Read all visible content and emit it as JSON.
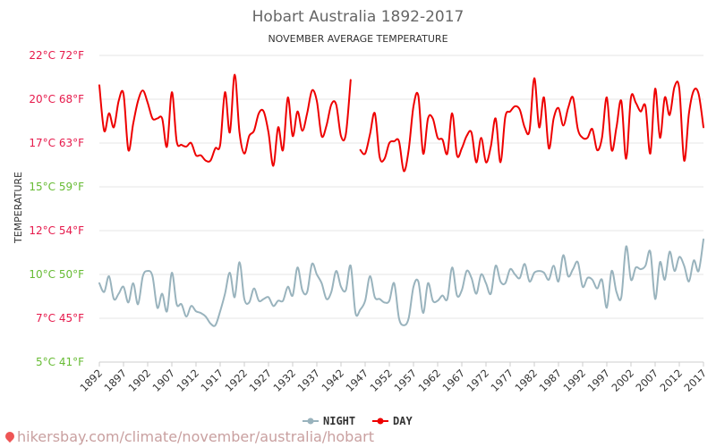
{
  "title": "Hobart Australia 1892-2017",
  "subtitle": "NOVEMBER AVERAGE TEMPERATURE",
  "ylabel": "TEMPERATURE",
  "url": "hikersbay.com/climate/november/australia/hobart",
  "colors": {
    "day": "#ee0000",
    "night": "#99b3bd",
    "grid": "#e6e6e6",
    "tick_warm": "#e6194b",
    "tick_cool": "#66bb33"
  },
  "chart_data": {
    "type": "line",
    "x": [
      1892,
      1893,
      1894,
      1895,
      1896,
      1897,
      1898,
      1899,
      1900,
      1901,
      1902,
      1903,
      1904,
      1905,
      1906,
      1907,
      1908,
      1909,
      1910,
      1911,
      1912,
      1913,
      1914,
      1915,
      1916,
      1917,
      1918,
      1919,
      1920,
      1921,
      1922,
      1923,
      1924,
      1925,
      1926,
      1927,
      1928,
      1929,
      1930,
      1931,
      1932,
      1933,
      1934,
      1935,
      1936,
      1937,
      1938,
      1939,
      1940,
      1941,
      1942,
      1943,
      1944,
      1945,
      1946,
      1947,
      1948,
      1949,
      1950,
      1951,
      1952,
      1953,
      1954,
      1955,
      1956,
      1957,
      1958,
      1959,
      1960,
      1961,
      1962,
      1963,
      1964,
      1965,
      1966,
      1967,
      1968,
      1969,
      1970,
      1971,
      1972,
      1973,
      1974,
      1975,
      1976,
      1977,
      1978,
      1979,
      1980,
      1981,
      1982,
      1983,
      1984,
      1985,
      1986,
      1987,
      1988,
      1989,
      1990,
      1991,
      1992,
      1993,
      1994,
      1995,
      1996,
      1997,
      1998,
      1999,
      2000,
      2001,
      2002,
      2003,
      2004,
      2005,
      2006,
      2007,
      2008,
      2009,
      2010,
      2011,
      2012,
      2013,
      2014,
      2015,
      2016,
      2017
    ],
    "series": [
      {
        "name": "DAY",
        "values": [
          20.8,
          18.2,
          19.2,
          18.4,
          19.9,
          20.3,
          17.1,
          18.6,
          19.9,
          20.5,
          19.8,
          18.9,
          18.9,
          18.9,
          17.3,
          20.4,
          17.6,
          17.4,
          17.3,
          17.5,
          16.8,
          16.8,
          16.5,
          16.5,
          17.2,
          17.4,
          20.4,
          18.1,
          21.4,
          18.1,
          16.9,
          17.9,
          18.2,
          19.2,
          19.3,
          18.1,
          16.2,
          18.4,
          17.1,
          20.1,
          17.9,
          19.3,
          18.2,
          19.2,
          20.5,
          19.9,
          17.9,
          18.5,
          19.7,
          19.7,
          17.9,
          18.0,
          21.1,
          null,
          17.1,
          16.9,
          18.0,
          19.2,
          16.7,
          16.6,
          17.5,
          17.6,
          17.6,
          15.9,
          17.1,
          19.6,
          20.2,
          16.9,
          18.9,
          18.9,
          17.8,
          17.7,
          16.9,
          19.2,
          16.8,
          17.2,
          17.9,
          18.1,
          16.4,
          17.8,
          16.4,
          17.3,
          18.9,
          16.4,
          19.0,
          19.3,
          19.6,
          19.4,
          18.4,
          18.2,
          21.2,
          18.4,
          20.1,
          17.2,
          18.9,
          19.5,
          18.5,
          19.5,
          20.1,
          18.3,
          17.8,
          17.8,
          18.3,
          17.1,
          17.8,
          20.1,
          17.1,
          18.4,
          19.9,
          16.6,
          20.1,
          19.8,
          19.3,
          19.6,
          16.9,
          20.6,
          17.8,
          20.1,
          19.1,
          20.7,
          20.6,
          16.5,
          19.2,
          20.5,
          20.3,
          18.4
        ]
      },
      {
        "name": "NIGHT",
        "values": [
          9.5,
          9.0,
          9.9,
          8.6,
          8.9,
          9.3,
          8.4,
          9.5,
          8.3,
          9.9,
          10.2,
          9.9,
          8.1,
          8.9,
          7.9,
          10.1,
          8.3,
          8.3,
          7.6,
          8.2,
          7.9,
          7.8,
          7.6,
          7.2,
          7.1,
          7.9,
          8.9,
          10.1,
          8.7,
          10.7,
          8.6,
          8.4,
          9.2,
          8.5,
          8.6,
          8.7,
          8.2,
          8.5,
          8.5,
          9.3,
          8.8,
          10.4,
          9.1,
          9.0,
          10.6,
          10.0,
          9.5,
          8.6,
          9.0,
          10.2,
          9.3,
          9.1,
          10.5,
          7.8,
          8.0,
          8.5,
          9.9,
          8.7,
          8.6,
          8.4,
          8.5,
          9.5,
          7.5,
          7.1,
          7.5,
          9.3,
          9.6,
          7.8,
          9.5,
          8.5,
          8.5,
          8.8,
          8.6,
          10.4,
          8.8,
          9.1,
          10.2,
          9.8,
          8.9,
          10.0,
          9.5,
          8.9,
          10.5,
          9.6,
          9.5,
          10.3,
          10.0,
          9.8,
          10.6,
          9.6,
          10.1,
          10.2,
          10.1,
          9.7,
          10.5,
          9.6,
          11.1,
          9.9,
          10.3,
          10.7,
          9.3,
          9.8,
          9.7,
          9.2,
          9.7,
          8.1,
          10.2,
          9.0,
          8.7,
          11.6,
          9.7,
          10.4,
          10.3,
          10.5,
          11.3,
          8.6,
          10.7,
          9.7,
          11.3,
          10.2,
          11.0,
          10.5,
          9.6,
          10.8,
          10.2,
          12.0
        ]
      }
    ],
    "xticks": [
      "1892",
      "1897",
      "1902",
      "1907",
      "1912",
      "1917",
      "1922",
      "1927",
      "1932",
      "1937",
      "1942",
      "1947",
      "1952",
      "1957",
      "1962",
      "1967",
      "1972",
      "1977",
      "1982",
      "1987",
      "1992",
      "1997",
      "2002",
      "2007",
      "2012",
      "2017"
    ],
    "yticks": [
      {
        "value": 5,
        "label": "5°C 41°F",
        "tone": "cool"
      },
      {
        "value": 7.5,
        "label": "7°C 45°F",
        "tone": "warm"
      },
      {
        "value": 10,
        "label": "10°C 50°F",
        "tone": "cool"
      },
      {
        "value": 12.5,
        "label": "12°C 54°F",
        "tone": "warm"
      },
      {
        "value": 15,
        "label": "15°C 59°F",
        "tone": "cool"
      },
      {
        "value": 17.5,
        "label": "17°C 63°F",
        "tone": "warm"
      },
      {
        "value": 20,
        "label": "20°C 68°F",
        "tone": "warm"
      },
      {
        "value": 22.5,
        "label": "22°C 72°F",
        "tone": "warm"
      }
    ],
    "ylim": [
      5,
      22.5
    ],
    "xlim": [
      1892,
      2017
    ],
    "grid": true,
    "legend": "bottom-center"
  },
  "legend": [
    {
      "label": "NIGHT",
      "color": "#99b3bd"
    },
    {
      "label": "DAY",
      "color": "#ee0000"
    }
  ]
}
